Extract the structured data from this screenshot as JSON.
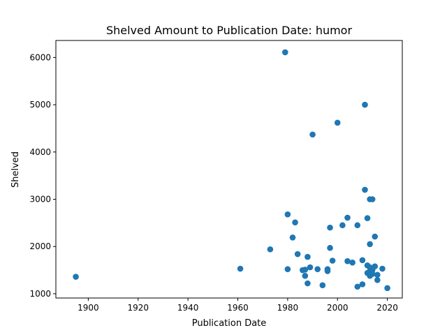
{
  "chart_data": {
    "type": "scatter",
    "title": "Shelved Amount to Publication Date: humor",
    "xlabel": "Publication Date",
    "ylabel": "Shelved",
    "xlim": [
      1887,
      2026
    ],
    "ylim": [
      910,
      6360
    ],
    "xticks": [
      1900,
      1920,
      1940,
      1960,
      1980,
      2000,
      2020
    ],
    "yticks": [
      1000,
      2000,
      3000,
      4000,
      5000,
      6000
    ],
    "grid": false,
    "color": "#1f77b4",
    "series": [
      {
        "x": [
          1895,
          1961,
          1973,
          1979,
          1980,
          1980,
          1982,
          1983,
          1984,
          1986,
          1987,
          1987,
          1988,
          1988,
          1989,
          1990,
          1992,
          1994,
          1996,
          1996,
          1997,
          1997,
          1998,
          2000,
          2002,
          2004,
          2004,
          2006,
          2008,
          2008,
          2010,
          2010,
          2011,
          2011,
          2012,
          2012,
          2012,
          2013,
          2013,
          2013,
          2013,
          2013,
          2014,
          2014,
          2014,
          2015,
          2015,
          2016,
          2016,
          2018,
          2020
        ],
        "y": [
          1360,
          1530,
          1940,
          6110,
          2680,
          1520,
          2190,
          2510,
          1840,
          1500,
          1510,
          1380,
          1780,
          1220,
          1560,
          4370,
          1520,
          1180,
          1520,
          1480,
          2400,
          1970,
          1700,
          4620,
          2450,
          1690,
          2610,
          1660,
          2450,
          1150,
          1710,
          1200,
          5000,
          3200,
          2600,
          1600,
          1440,
          3000,
          2050,
          1560,
          1480,
          1380,
          3000,
          1500,
          1420,
          2210,
          1580,
          1400,
          1290,
          1530,
          1120
        ]
      }
    ]
  }
}
